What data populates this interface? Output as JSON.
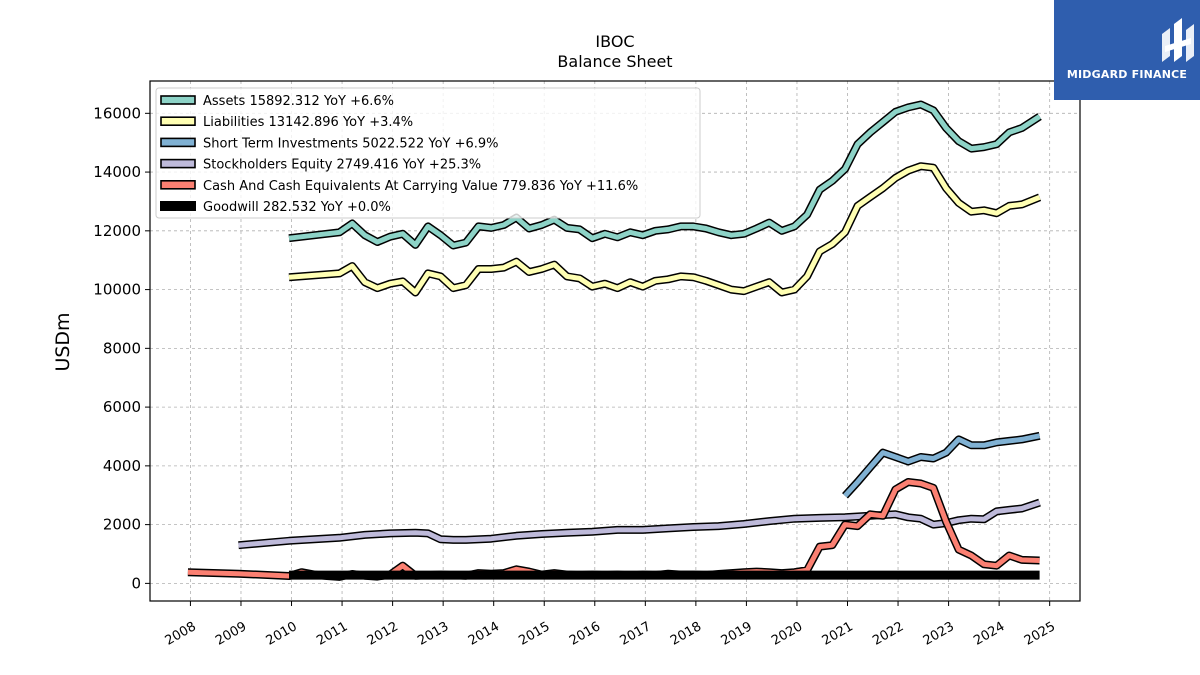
{
  "brand": {
    "name": "MIDGARD FINANCE",
    "color": "#2f5eae"
  },
  "chart_data": {
    "type": "line",
    "title": "IBOC",
    "subtitle": "Balance  Sheet",
    "xlabel": "",
    "ylabel": "USDm",
    "xlim": [
      2007.2,
      2025.6
    ],
    "ylim": [
      -600,
      17100
    ],
    "grid": true,
    "legend_position": "top-left",
    "x_ticks": [
      "2008",
      "2009",
      "2010",
      "2011",
      "2012",
      "2013",
      "2014",
      "2015",
      "2016",
      "2017",
      "2018",
      "2019",
      "2020",
      "2021",
      "2022",
      "2023",
      "2024",
      "2025"
    ],
    "y_ticks": [
      "0",
      "2000",
      "4000",
      "6000",
      "8000",
      "10000",
      "12000",
      "14000",
      "16000"
    ],
    "series": [
      {
        "name": "Assets",
        "legend": "Assets  15892.312 YoY +6.6%",
        "color": "#8dd3c7",
        "points": [
          [
            2009.95,
            11750
          ],
          [
            2010.95,
            11950
          ],
          [
            2011.2,
            12250
          ],
          [
            2011.45,
            11850
          ],
          [
            2011.7,
            11620
          ],
          [
            2011.95,
            11800
          ],
          [
            2012.2,
            11900
          ],
          [
            2012.45,
            11520
          ],
          [
            2012.7,
            12150
          ],
          [
            2012.95,
            11850
          ],
          [
            2013.2,
            11500
          ],
          [
            2013.45,
            11600
          ],
          [
            2013.7,
            12150
          ],
          [
            2013.95,
            12100
          ],
          [
            2014.2,
            12200
          ],
          [
            2014.45,
            12450
          ],
          [
            2014.7,
            12080
          ],
          [
            2014.95,
            12200
          ],
          [
            2015.2,
            12380
          ],
          [
            2015.45,
            12100
          ],
          [
            2015.7,
            12050
          ],
          [
            2015.95,
            11750
          ],
          [
            2016.2,
            11900
          ],
          [
            2016.45,
            11780
          ],
          [
            2016.7,
            11950
          ],
          [
            2016.95,
            11850
          ],
          [
            2017.2,
            12000
          ],
          [
            2017.45,
            12050
          ],
          [
            2017.7,
            12150
          ],
          [
            2017.95,
            12150
          ],
          [
            2018.2,
            12080
          ],
          [
            2018.45,
            11950
          ],
          [
            2018.7,
            11850
          ],
          [
            2018.95,
            11900
          ],
          [
            2019.2,
            12080
          ],
          [
            2019.45,
            12280
          ],
          [
            2019.7,
            12000
          ],
          [
            2019.95,
            12150
          ],
          [
            2020.2,
            12550
          ],
          [
            2020.45,
            13400
          ],
          [
            2020.7,
            13700
          ],
          [
            2020.95,
            14100
          ],
          [
            2021.2,
            14950
          ],
          [
            2021.45,
            15350
          ],
          [
            2021.7,
            15700
          ],
          [
            2021.95,
            16050
          ],
          [
            2022.2,
            16200
          ],
          [
            2022.45,
            16300
          ],
          [
            2022.7,
            16100
          ],
          [
            2022.95,
            15500
          ],
          [
            2023.2,
            15050
          ],
          [
            2023.45,
            14800
          ],
          [
            2023.7,
            14850
          ],
          [
            2023.95,
            14950
          ],
          [
            2024.2,
            15350
          ],
          [
            2024.45,
            15500
          ],
          [
            2024.8,
            15892
          ]
        ]
      },
      {
        "name": "Liabilities",
        "legend": "Liabilities  13142.896 YoY +3.4%",
        "color": "#ffffb3",
        "points": [
          [
            2009.95,
            10420
          ],
          [
            2010.95,
            10550
          ],
          [
            2011.2,
            10800
          ],
          [
            2011.45,
            10250
          ],
          [
            2011.7,
            10050
          ],
          [
            2011.95,
            10200
          ],
          [
            2012.2,
            10280
          ],
          [
            2012.45,
            9900
          ],
          [
            2012.7,
            10550
          ],
          [
            2012.95,
            10450
          ],
          [
            2013.2,
            10050
          ],
          [
            2013.45,
            10150
          ],
          [
            2013.7,
            10700
          ],
          [
            2013.95,
            10700
          ],
          [
            2014.2,
            10750
          ],
          [
            2014.45,
            10950
          ],
          [
            2014.7,
            10600
          ],
          [
            2014.95,
            10700
          ],
          [
            2015.2,
            10850
          ],
          [
            2015.45,
            10450
          ],
          [
            2015.7,
            10380
          ],
          [
            2015.95,
            10100
          ],
          [
            2016.2,
            10200
          ],
          [
            2016.45,
            10050
          ],
          [
            2016.7,
            10250
          ],
          [
            2016.95,
            10100
          ],
          [
            2017.2,
            10300
          ],
          [
            2017.45,
            10350
          ],
          [
            2017.7,
            10450
          ],
          [
            2017.95,
            10420
          ],
          [
            2018.2,
            10300
          ],
          [
            2018.45,
            10150
          ],
          [
            2018.7,
            10000
          ],
          [
            2018.95,
            9950
          ],
          [
            2019.2,
            10100
          ],
          [
            2019.45,
            10250
          ],
          [
            2019.7,
            9900
          ],
          [
            2019.95,
            10000
          ],
          [
            2020.2,
            10450
          ],
          [
            2020.45,
            11300
          ],
          [
            2020.7,
            11550
          ],
          [
            2020.95,
            11950
          ],
          [
            2021.2,
            12850
          ],
          [
            2021.45,
            13150
          ],
          [
            2021.7,
            13450
          ],
          [
            2021.95,
            13800
          ],
          [
            2022.2,
            14050
          ],
          [
            2022.45,
            14200
          ],
          [
            2022.7,
            14150
          ],
          [
            2022.95,
            13450
          ],
          [
            2023.2,
            12950
          ],
          [
            2023.45,
            12650
          ],
          [
            2023.7,
            12700
          ],
          [
            2023.95,
            12600
          ],
          [
            2024.2,
            12850
          ],
          [
            2024.45,
            12900
          ],
          [
            2024.8,
            13143
          ]
        ]
      },
      {
        "name": "Short Term Investments",
        "legend": "Short Term Investments  5022.522 YoY +6.9%",
        "color": "#80b1d3",
        "points": [
          [
            2020.95,
            2980
          ],
          [
            2021.2,
            3450
          ],
          [
            2021.45,
            3950
          ],
          [
            2021.7,
            4450
          ],
          [
            2021.95,
            4300
          ],
          [
            2022.2,
            4150
          ],
          [
            2022.45,
            4300
          ],
          [
            2022.7,
            4250
          ],
          [
            2022.95,
            4450
          ],
          [
            2023.2,
            4900
          ],
          [
            2023.45,
            4700
          ],
          [
            2023.7,
            4700
          ],
          [
            2023.95,
            4800
          ],
          [
            2024.2,
            4850
          ],
          [
            2024.45,
            4900
          ],
          [
            2024.8,
            5023
          ]
        ]
      },
      {
        "name": "Stockholders Equity",
        "legend": "Stockholders Equity  2749.416 YoY +25.3%",
        "color": "#bebada",
        "points": [
          [
            2008.95,
            1300
          ],
          [
            2009.95,
            1450
          ],
          [
            2010.95,
            1550
          ],
          [
            2011.45,
            1650
          ],
          [
            2011.95,
            1700
          ],
          [
            2012.45,
            1720
          ],
          [
            2012.7,
            1700
          ],
          [
            2012.95,
            1500
          ],
          [
            2013.2,
            1480
          ],
          [
            2013.45,
            1480
          ],
          [
            2013.95,
            1520
          ],
          [
            2014.45,
            1620
          ],
          [
            2014.95,
            1680
          ],
          [
            2015.45,
            1720
          ],
          [
            2015.95,
            1760
          ],
          [
            2016.45,
            1820
          ],
          [
            2016.95,
            1820
          ],
          [
            2017.45,
            1870
          ],
          [
            2017.95,
            1920
          ],
          [
            2018.45,
            1950
          ],
          [
            2018.95,
            2020
          ],
          [
            2019.45,
            2120
          ],
          [
            2019.95,
            2200
          ],
          [
            2020.45,
            2230
          ],
          [
            2020.95,
            2250
          ],
          [
            2021.45,
            2300
          ],
          [
            2021.95,
            2350
          ],
          [
            2022.2,
            2250
          ],
          [
            2022.45,
            2200
          ],
          [
            2022.7,
            2000
          ],
          [
            2022.95,
            2050
          ],
          [
            2023.2,
            2150
          ],
          [
            2023.45,
            2200
          ],
          [
            2023.7,
            2180
          ],
          [
            2023.95,
            2450
          ],
          [
            2024.2,
            2500
          ],
          [
            2024.45,
            2550
          ],
          [
            2024.8,
            2749
          ]
        ]
      },
      {
        "name": "Cash And Cash Equivalents At Carrying Value",
        "legend": "Cash And Cash Equivalents At Carrying Value  779.836 YoY +11.6%",
        "color": "#fb8072",
        "points": [
          [
            2007.95,
            380
          ],
          [
            2008.95,
            330
          ],
          [
            2009.95,
            250
          ],
          [
            2010.2,
            380
          ],
          [
            2010.45,
            300
          ],
          [
            2010.7,
            250
          ],
          [
            2010.95,
            220
          ],
          [
            2011.2,
            320
          ],
          [
            2011.45,
            260
          ],
          [
            2011.7,
            230
          ],
          [
            2011.95,
            300
          ],
          [
            2012.2,
            600
          ],
          [
            2012.45,
            260
          ],
          [
            2012.7,
            280
          ],
          [
            2012.95,
            300
          ],
          [
            2013.2,
            280
          ],
          [
            2013.45,
            260
          ],
          [
            2013.7,
            350
          ],
          [
            2013.95,
            330
          ],
          [
            2014.2,
            350
          ],
          [
            2014.45,
            480
          ],
          [
            2014.7,
            400
          ],
          [
            2014.95,
            300
          ],
          [
            2015.2,
            350
          ],
          [
            2015.45,
            300
          ],
          [
            2015.7,
            280
          ],
          [
            2015.95,
            300
          ],
          [
            2016.2,
            280
          ],
          [
            2016.45,
            300
          ],
          [
            2016.7,
            270
          ],
          [
            2016.95,
            300
          ],
          [
            2017.2,
            280
          ],
          [
            2017.45,
            330
          ],
          [
            2017.7,
            300
          ],
          [
            2017.95,
            300
          ],
          [
            2018.2,
            280
          ],
          [
            2018.45,
            320
          ],
          [
            2018.7,
            350
          ],
          [
            2018.95,
            380
          ],
          [
            2019.2,
            400
          ],
          [
            2019.45,
            380
          ],
          [
            2019.7,
            350
          ],
          [
            2019.95,
            380
          ],
          [
            2020.2,
            450
          ],
          [
            2020.45,
            1250
          ],
          [
            2020.7,
            1300
          ],
          [
            2020.95,
            2000
          ],
          [
            2021.2,
            1950
          ],
          [
            2021.45,
            2350
          ],
          [
            2021.7,
            2300
          ],
          [
            2021.95,
            3200
          ],
          [
            2022.2,
            3450
          ],
          [
            2022.45,
            3400
          ],
          [
            2022.7,
            3250
          ],
          [
            2022.95,
            2100
          ],
          [
            2023.2,
            1150
          ],
          [
            2023.45,
            950
          ],
          [
            2023.7,
            650
          ],
          [
            2023.95,
            600
          ],
          [
            2024.2,
            950
          ],
          [
            2024.45,
            800
          ],
          [
            2024.8,
            780
          ]
        ]
      },
      {
        "name": "Goodwill",
        "legend": "Goodwill  282.532 YoY +0.0%",
        "color": "#000000",
        "points": [
          [
            2009.95,
            282.532
          ],
          [
            2024.8,
            282.532
          ]
        ]
      }
    ]
  }
}
